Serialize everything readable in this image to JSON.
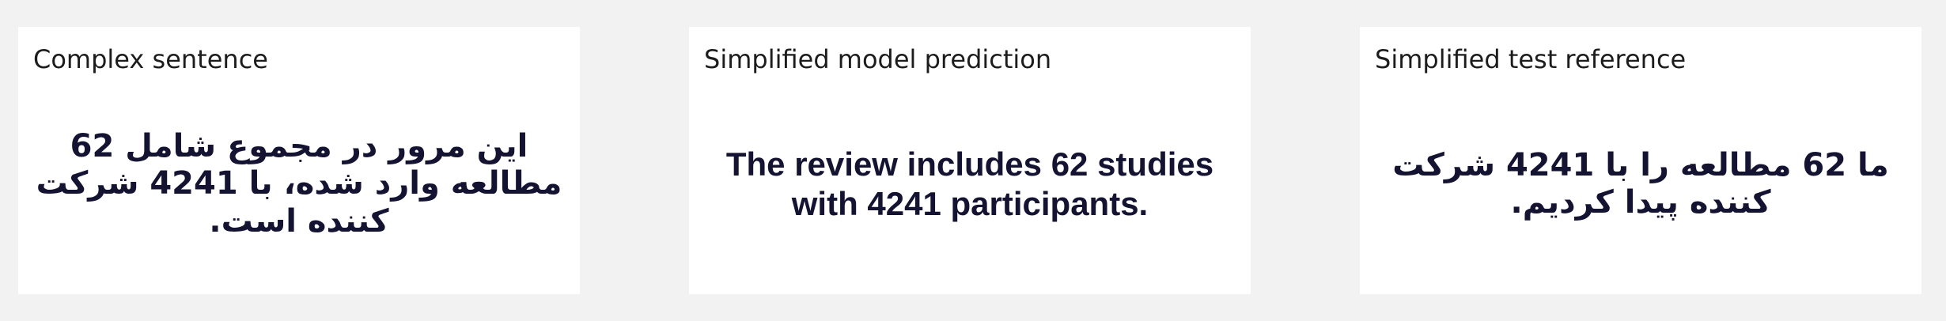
{
  "panels": [
    {
      "label": "Complex sentence",
      "text": "این مرور در مجموع شامل 62 مطالعه وارد شده، با 4241 شرکت کننده است."
    },
    {
      "label": "Simplified model prediction",
      "text": "The review includes 62 studies with 4241 participants."
    },
    {
      "label": "Simplified test reference",
      "text": "ما 62 مطالعه را با 4241 شرکت کننده پیدا کردیم."
    }
  ],
  "colors": {
    "background": "#f2f2f2",
    "panel": "#ffffff",
    "label_text": "#1c1c1c",
    "main_text": "#141432"
  }
}
